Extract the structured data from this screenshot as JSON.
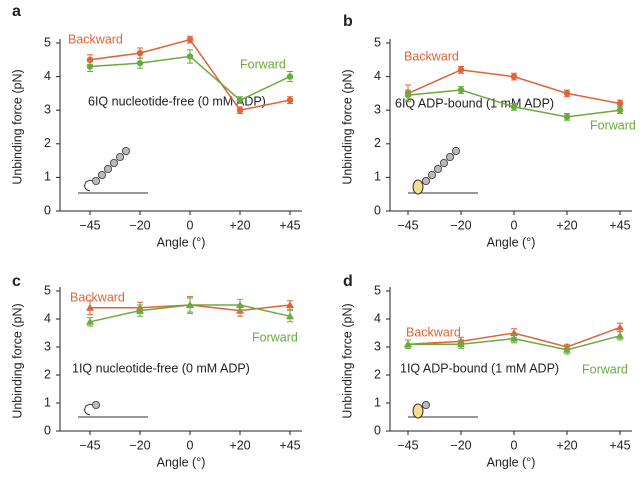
{
  "chart_data": [
    {
      "type": "line",
      "panel_label": "a",
      "annotation": "6IQ  nucleotide-free (0 mM ADP)",
      "x_label": "Angle (°)",
      "y_label": "Unbinding force (pN)",
      "categories": [
        "−45",
        "−20",
        "0",
        "+20",
        "+45"
      ],
      "ylim": [
        0,
        5
      ],
      "yticks": [
        0,
        1,
        2,
        3,
        4,
        5
      ],
      "series": [
        {
          "name": "Backward",
          "color": "#e2633a",
          "marker": "circle",
          "values": [
            4.5,
            4.7,
            5.1,
            3.0,
            3.3
          ],
          "errors": [
            0.15,
            0.15,
            0.1,
            0.1,
            0.1
          ]
        },
        {
          "name": "Forward",
          "color": "#6aab3e",
          "marker": "circle",
          "values": [
            4.3,
            4.4,
            4.6,
            3.3,
            4.0
          ],
          "errors": [
            0.15,
            0.15,
            0.2,
            0.1,
            0.15
          ]
        }
      ]
    },
    {
      "type": "line",
      "panel_label": "b",
      "annotation": "6IQ ADP-bound (1 mM ADP)",
      "x_label": "Angle (°)",
      "y_label": "Unbinding force (pN)",
      "categories": [
        "−45",
        "−20",
        "0",
        "+20",
        "+45"
      ],
      "ylim": [
        0,
        5
      ],
      "yticks": [
        0,
        1,
        2,
        3,
        4,
        5
      ],
      "series": [
        {
          "name": "Backward",
          "color": "#e2633a",
          "marker": "circle",
          "values": [
            3.5,
            4.2,
            4.0,
            3.5,
            3.2
          ],
          "errors": [
            0.25,
            0.1,
            0.1,
            0.1,
            0.1
          ]
        },
        {
          "name": "Forward",
          "color": "#6aab3e",
          "marker": "circle",
          "values": [
            3.45,
            3.6,
            3.1,
            2.8,
            3.0
          ],
          "errors": [
            0.15,
            0.1,
            0.1,
            0.1,
            0.1
          ]
        }
      ]
    },
    {
      "type": "line",
      "panel_label": "c",
      "annotation": "1IQ nucleotide-free (0 mM ADP)",
      "x_label": "Angle (°)",
      "y_label": "Unbinding force (pN)",
      "categories": [
        "−45",
        "−20",
        "0",
        "+20",
        "+45"
      ],
      "ylim": [
        0,
        5
      ],
      "yticks": [
        0,
        1,
        2,
        3,
        4,
        5
      ],
      "series": [
        {
          "name": "Backward",
          "color": "#e2633a",
          "marker": "triangle",
          "values": [
            4.4,
            4.4,
            4.5,
            4.3,
            4.5
          ],
          "errors": [
            0.25,
            0.2,
            0.3,
            0.2,
            0.15
          ]
        },
        {
          "name": "Forward",
          "color": "#6aab3e",
          "marker": "triangle",
          "values": [
            3.9,
            4.3,
            4.5,
            4.5,
            4.1
          ],
          "errors": [
            0.15,
            0.2,
            0.25,
            0.2,
            0.2
          ]
        }
      ]
    },
    {
      "type": "line",
      "panel_label": "d",
      "annotation": "1IQ ADP-bound (1 mM ADP)",
      "x_label": "Angle (°)",
      "y_label": "Unbinding force (pN)",
      "categories": [
        "−45",
        "−20",
        "0",
        "+20",
        "+45"
      ],
      "ylim": [
        0,
        5
      ],
      "yticks": [
        0,
        1,
        2,
        3,
        4,
        5
      ],
      "series": [
        {
          "name": "Backward",
          "color": "#e2633a",
          "marker": "triangle",
          "values": [
            3.1,
            3.2,
            3.5,
            3.0,
            3.7
          ],
          "errors": [
            0.15,
            0.15,
            0.15,
            0.1,
            0.15
          ]
        },
        {
          "name": "Forward",
          "color": "#6aab3e",
          "marker": "triangle",
          "values": [
            3.1,
            3.1,
            3.3,
            2.9,
            3.4
          ],
          "errors": [
            0.15,
            0.15,
            0.15,
            0.15,
            0.15
          ]
        }
      ]
    }
  ]
}
